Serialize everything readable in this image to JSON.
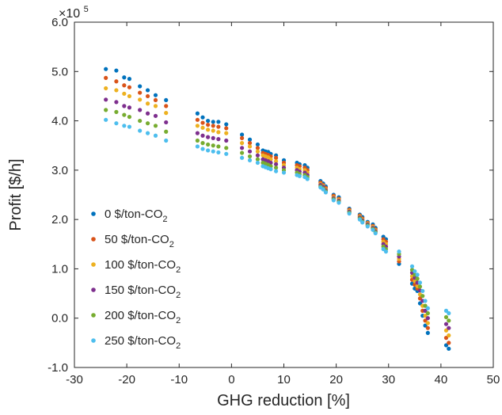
{
  "chart_data": {
    "type": "scatter",
    "xlabel": "GHG reduction [%]",
    "ylabel": "Profit [$/h]",
    "xlim": [
      -30,
      50
    ],
    "ylim": [
      -1.0,
      6.0
    ],
    "y_multiplier_label": "×10",
    "y_multiplier_exponent": "5",
    "x_ticks": [
      -30,
      -20,
      -10,
      0,
      10,
      20,
      30,
      40,
      50
    ],
    "x_tick_labels": [
      "-30",
      "-20",
      "-10",
      "0",
      "10",
      "20",
      "30",
      "40",
      "50"
    ],
    "y_ticks": [
      -1.0,
      0.0,
      1.0,
      2.0,
      3.0,
      4.0,
      5.0,
      6.0
    ],
    "y_tick_labels": [
      "-1.0",
      "0.0",
      "1.0",
      "2.0",
      "3.0",
      "4.0",
      "5.0",
      "6.0"
    ],
    "grid": false,
    "legend_position": "left",
    "x": [
      -24.0,
      -22.0,
      -20.5,
      -19.5,
      -17.5,
      -16.0,
      -14.5,
      -12.5,
      -6.5,
      -5.5,
      -4.5,
      -3.5,
      -2.5,
      -1.0,
      2.0,
      3.5,
      5.0,
      6.0,
      6.5,
      7.0,
      7.5,
      8.5,
      10.0,
      12.5,
      13.0,
      14.0,
      14.5,
      17.0,
      17.5,
      18.0,
      19.5,
      20.5,
      22.5,
      24.5,
      25.0,
      26.0,
      27.0,
      27.5,
      29.0,
      29.5,
      32.0,
      34.5,
      35.0,
      35.5,
      36.0,
      36.5,
      37.0,
      37.5,
      41.0,
      41.5
    ],
    "series": [
      {
        "name": "0 $/ton-CO2",
        "name_main": "0 $/ton-CO",
        "name_sub": "2",
        "color": "#0072BD",
        "values": [
          5.05,
          5.02,
          4.88,
          4.85,
          4.7,
          4.62,
          4.52,
          4.42,
          4.15,
          4.07,
          4.0,
          3.98,
          3.98,
          3.93,
          3.72,
          3.62,
          3.52,
          3.4,
          3.38,
          3.37,
          3.33,
          3.3,
          3.2,
          3.15,
          3.12,
          3.1,
          3.05,
          2.78,
          2.73,
          2.67,
          2.5,
          2.45,
          2.22,
          2.1,
          2.05,
          1.95,
          1.9,
          1.83,
          1.65,
          1.6,
          1.1,
          0.7,
          0.6,
          0.55,
          0.3,
          0.05,
          -0.15,
          -0.3,
          -0.55,
          -0.62
        ]
      },
      {
        "name": "50 $/ton-CO2",
        "name_main": "50 $/ton-CO",
        "name_sub": "2",
        "color": "#D95319",
        "values": [
          4.87,
          4.8,
          4.72,
          4.68,
          4.57,
          4.5,
          4.42,
          4.3,
          4.02,
          3.96,
          3.92,
          3.9,
          3.88,
          3.85,
          3.65,
          3.55,
          3.45,
          3.35,
          3.33,
          3.31,
          3.28,
          3.25,
          3.15,
          3.1,
          3.08,
          3.05,
          3.0,
          2.75,
          2.7,
          2.64,
          2.48,
          2.42,
          2.2,
          2.08,
          2.02,
          1.93,
          1.87,
          1.8,
          1.6,
          1.55,
          1.15,
          0.78,
          0.68,
          0.6,
          0.4,
          0.15,
          -0.05,
          -0.2,
          -0.4,
          -0.5
        ]
      },
      {
        "name": "100 $/ton-CO2",
        "name_main": "100 $/ton-CO",
        "name_sub": "2",
        "color": "#EDB120",
        "values": [
          4.66,
          4.62,
          4.55,
          4.5,
          4.43,
          4.35,
          4.3,
          4.16,
          3.9,
          3.86,
          3.82,
          3.8,
          3.77,
          3.75,
          3.55,
          3.48,
          3.38,
          3.3,
          3.28,
          3.26,
          3.22,
          3.18,
          3.1,
          3.05,
          3.02,
          3.0,
          2.95,
          2.72,
          2.68,
          2.61,
          2.45,
          2.4,
          2.18,
          2.06,
          2.0,
          1.92,
          1.85,
          1.78,
          1.55,
          1.5,
          1.2,
          0.85,
          0.75,
          0.65,
          0.48,
          0.25,
          0.05,
          -0.1,
          -0.25,
          -0.35
        ]
      },
      {
        "name": "150 $/ton-CO2",
        "name_main": "150 $/ton-CO",
        "name_sub": "2",
        "color": "#7E2F8E",
        "values": [
          4.43,
          4.38,
          4.3,
          4.27,
          4.22,
          4.15,
          4.1,
          3.97,
          3.75,
          3.7,
          3.67,
          3.65,
          3.63,
          3.6,
          3.45,
          3.38,
          3.3,
          3.22,
          3.2,
          3.18,
          3.15,
          3.12,
          3.05,
          3.0,
          2.97,
          2.95,
          2.9,
          2.7,
          2.66,
          2.59,
          2.43,
          2.38,
          2.16,
          2.04,
          1.98,
          1.9,
          1.83,
          1.76,
          1.5,
          1.45,
          1.25,
          0.92,
          0.82,
          0.72,
          0.56,
          0.35,
          0.15,
          0.0,
          -0.12,
          -0.2
        ]
      },
      {
        "name": "200 $/ton-CO2",
        "name_main": "200 $/ton-CO",
        "name_sub": "2",
        "color": "#77AC30",
        "values": [
          4.22,
          4.18,
          4.12,
          4.08,
          4.0,
          3.95,
          3.9,
          3.78,
          3.6,
          3.55,
          3.52,
          3.5,
          3.48,
          3.45,
          3.35,
          3.28,
          3.22,
          3.15,
          3.13,
          3.11,
          3.08,
          3.05,
          3.0,
          2.95,
          2.92,
          2.9,
          2.86,
          2.67,
          2.63,
          2.57,
          2.41,
          2.36,
          2.14,
          2.02,
          1.96,
          1.88,
          1.81,
          1.74,
          1.45,
          1.4,
          1.3,
          0.98,
          0.88,
          0.8,
          0.64,
          0.45,
          0.25,
          0.1,
          0.02,
          -0.05
        ]
      },
      {
        "name": "250 $/ton-CO2",
        "name_main": "250 $/ton-CO",
        "name_sub": "2",
        "color": "#4DBEEE",
        "values": [
          4.02,
          3.95,
          3.9,
          3.88,
          3.8,
          3.75,
          3.7,
          3.6,
          3.48,
          3.43,
          3.4,
          3.38,
          3.36,
          3.33,
          3.25,
          3.2,
          3.15,
          3.08,
          3.06,
          3.04,
          3.02,
          2.98,
          2.95,
          2.9,
          2.88,
          2.86,
          2.82,
          2.65,
          2.61,
          2.55,
          2.39,
          2.34,
          2.12,
          2.0,
          1.94,
          1.86,
          1.79,
          1.72,
          1.4,
          1.35,
          1.35,
          1.05,
          0.95,
          0.88,
          0.72,
          0.55,
          0.35,
          0.2,
          0.15,
          0.1
        ]
      }
    ]
  }
}
